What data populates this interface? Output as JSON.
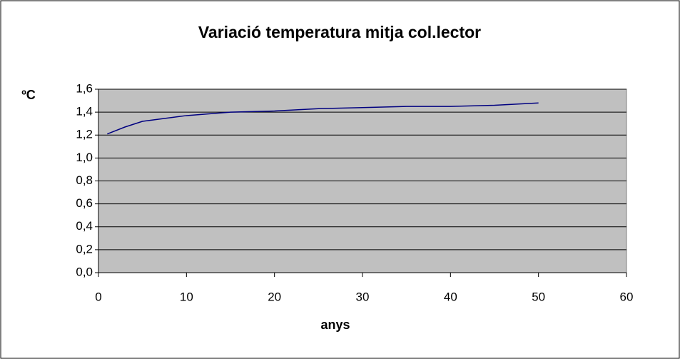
{
  "chart_data": {
    "type": "line",
    "title": "Variació temperatura mitja col.lector",
    "xlabel": "anys",
    "ylabel": "ºC",
    "x": [
      1,
      3,
      5,
      10,
      15,
      20,
      25,
      30,
      35,
      40,
      45,
      50
    ],
    "values": [
      1.21,
      1.27,
      1.32,
      1.37,
      1.4,
      1.41,
      1.43,
      1.44,
      1.45,
      1.45,
      1.46,
      1.48
    ],
    "color": "#000080",
    "xlim": [
      0,
      60
    ],
    "xticks": [
      0,
      10,
      20,
      30,
      40,
      50,
      60
    ],
    "ylim": [
      0,
      1.6
    ],
    "yticks": [
      {
        "value": 0,
        "label": "0,0"
      },
      {
        "value": 0.2,
        "label": "0,2"
      },
      {
        "value": 0.4,
        "label": "0,4"
      },
      {
        "value": 0.6,
        "label": "0,6"
      },
      {
        "value": 0.8,
        "label": "0,8"
      },
      {
        "value": 1.0,
        "label": "1,0"
      },
      {
        "value": 1.2,
        "label": "1,2"
      },
      {
        "value": 1.4,
        "label": "1,4"
      },
      {
        "value": 1.6,
        "label": "1,6"
      }
    ],
    "grid": true
  }
}
